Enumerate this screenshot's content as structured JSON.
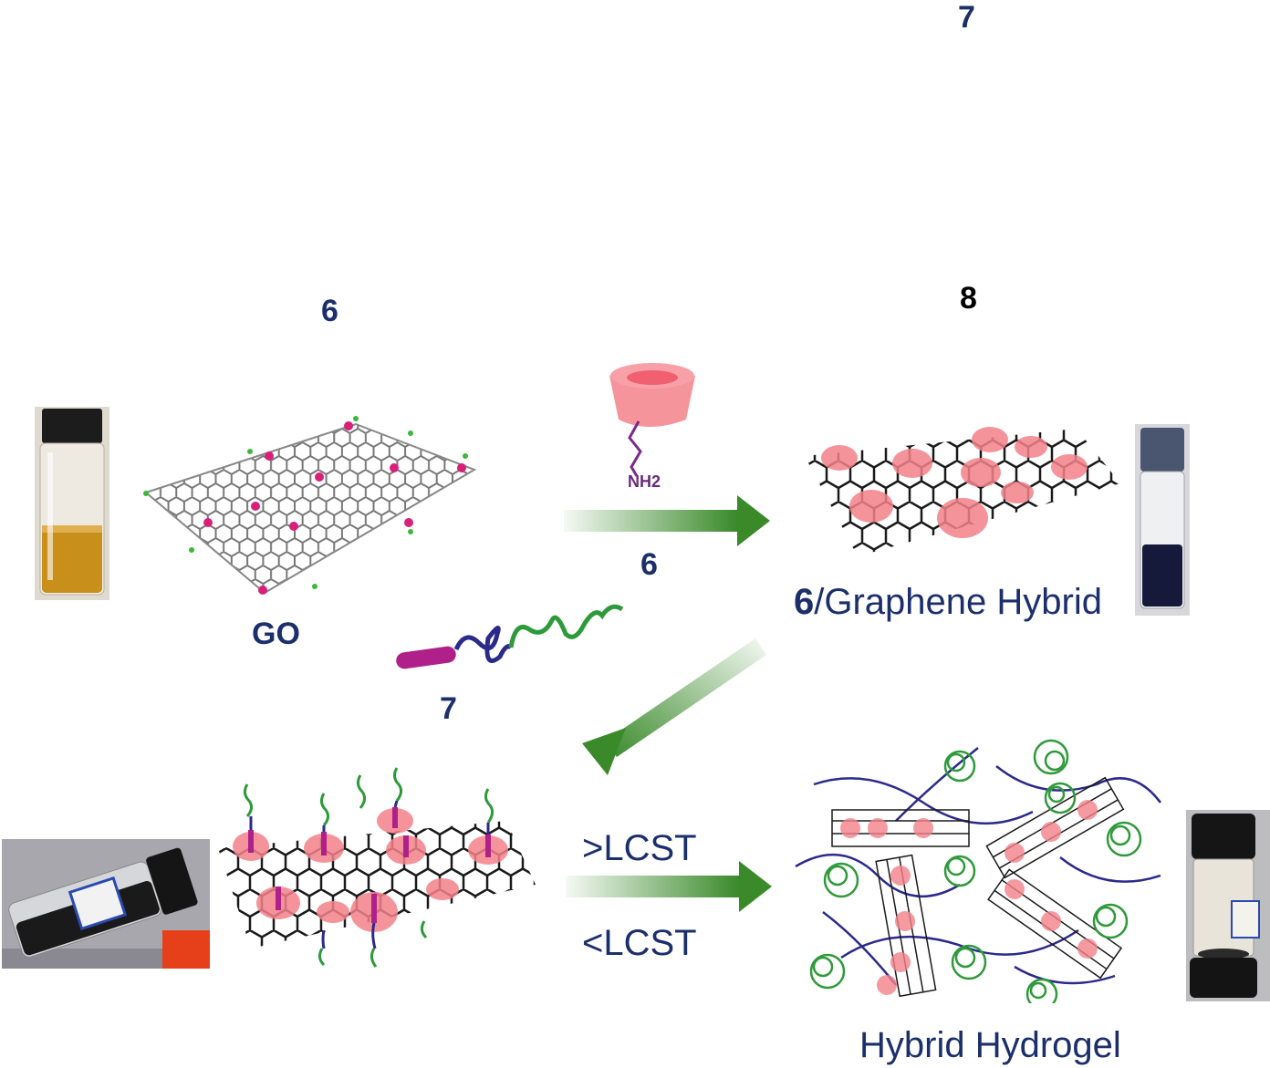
{
  "labels": {
    "top_number_1": "7",
    "top_number_2": "6",
    "top_number_3": "8",
    "go_label": "GO",
    "arrow1_label": "6",
    "hybrid_prefix": "6",
    "hybrid_label": "/Graphene Hybrid",
    "polymer_label": "7",
    "upper_condition": ">LCST",
    "lower_condition": "<LCST",
    "hydrogel_label": "Hybrid Hydrogel",
    "amine_label": "NH2"
  },
  "colors": {
    "label_navy": "#1b2f6b",
    "arrow_green": "#3a8a2a",
    "cyclodextrin_pink": "#f4818a",
    "graphene_lattice": "#1a1a1a",
    "polymer_blue": "#2b2a8a",
    "polymer_green": "#2e9a3a",
    "adamantane_magenta": "#b0208a",
    "oxygen_magenta": "#d8207a",
    "hydrogen_green": "#3ab83a",
    "go_dispersion_amber": "#c8901a"
  },
  "icons": [
    "vial-icon",
    "cyclodextrin-icon",
    "graphene-sheet-icon",
    "polymer-chain-icon",
    "arrow-icon"
  ]
}
